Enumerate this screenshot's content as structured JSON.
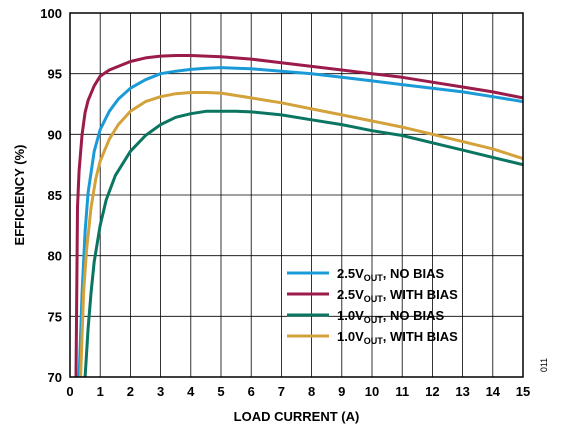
{
  "chart_data": {
    "type": "line",
    "title": "",
    "xlabel": "LOAD CURRENT (A)",
    "ylabel": "EFFICIENCY (%)",
    "xlim": [
      0,
      15
    ],
    "ylim": [
      70,
      100
    ],
    "x_ticks": [
      "0",
      "1",
      "2",
      "3",
      "4",
      "5",
      "6",
      "7",
      "8",
      "9",
      "10",
      "11",
      "12",
      "13",
      "14",
      "15"
    ],
    "y_ticks": [
      "70",
      "75",
      "80",
      "85",
      "90",
      "95",
      "100"
    ],
    "grid": true,
    "legend_position": "bottom-right",
    "figure_id": "011",
    "series": [
      {
        "name": "2.5V_OUT, NO BIAS",
        "legend_main": "2.5V",
        "legend_sub": "OUT",
        "legend_rest": ", NO BIAS",
        "color": "#1a9bd7",
        "x": [
          0.3,
          0.4,
          0.5,
          0.6,
          0.8,
          1.0,
          1.3,
          1.6,
          2.0,
          2.5,
          3.0,
          3.5,
          4.0,
          4.5,
          5.0,
          5.5,
          6.0,
          7.0,
          8.0,
          9.0,
          10.0,
          11.0,
          12.0,
          13.0,
          14.0,
          15.0
        ],
        "y": [
          70.0,
          77.0,
          82.0,
          85.2,
          88.6,
          90.4,
          91.9,
          92.9,
          93.8,
          94.5,
          95.0,
          95.2,
          95.35,
          95.45,
          95.5,
          95.45,
          95.4,
          95.2,
          95.0,
          94.7,
          94.4,
          94.1,
          93.8,
          93.5,
          93.1,
          92.7
        ]
      },
      {
        "name": "2.5V_OUT, WITH BIAS",
        "legend_main": "2.5V",
        "legend_sub": "OUT",
        "legend_rest": ", WITH BIAS",
        "color": "#9b1b4a",
        "x": [
          0.2,
          0.25,
          0.3,
          0.4,
          0.5,
          0.6,
          0.8,
          1.0,
          1.3,
          1.6,
          2.0,
          2.5,
          3.0,
          3.5,
          4.0,
          4.5,
          5.0,
          6.0,
          7.0,
          8.0,
          9.0,
          10.0,
          11.0,
          12.0,
          13.0,
          14.0,
          15.0
        ],
        "y": [
          70.0,
          84.0,
          87.0,
          90.0,
          91.8,
          92.8,
          94.0,
          94.8,
          95.3,
          95.6,
          96.0,
          96.3,
          96.45,
          96.5,
          96.5,
          96.45,
          96.4,
          96.2,
          95.9,
          95.6,
          95.3,
          95.0,
          94.7,
          94.3,
          93.9,
          93.5,
          93.0
        ]
      },
      {
        "name": "1.0V_OUT, NO BIAS",
        "legend_main": "1.0V",
        "legend_sub": "OUT",
        "legend_rest": ", NO BIAS",
        "color": "#0a7560",
        "x": [
          0.5,
          0.6,
          0.7,
          0.8,
          1.0,
          1.2,
          1.5,
          2.0,
          2.5,
          3.0,
          3.5,
          4.0,
          4.5,
          5.0,
          5.5,
          6.0,
          7.0,
          8.0,
          9.0,
          10.0,
          11.0,
          12.0,
          13.0,
          14.0,
          15.0
        ],
        "y": [
          70.0,
          74.0,
          77.0,
          79.5,
          82.5,
          84.6,
          86.6,
          88.6,
          89.9,
          90.8,
          91.4,
          91.7,
          91.9,
          91.9,
          91.9,
          91.85,
          91.6,
          91.2,
          90.8,
          90.3,
          89.9,
          89.3,
          88.7,
          88.1,
          87.5
        ]
      },
      {
        "name": "1.0V_OUT, WITH BIAS",
        "legend_main": "1.0V",
        "legend_sub": "OUT",
        "legend_rest": ", WITH BIAS",
        "color": "#d4a23a",
        "x": [
          0.35,
          0.45,
          0.55,
          0.7,
          0.85,
          1.0,
          1.3,
          1.6,
          2.0,
          2.5,
          3.0,
          3.5,
          4.0,
          4.5,
          5.0,
          6.0,
          7.0,
          8.0,
          9.0,
          10.0,
          11.0,
          12.0,
          13.0,
          14.0,
          15.0
        ],
        "y": [
          70.0,
          77.0,
          80.5,
          84.0,
          86.3,
          87.8,
          89.6,
          90.8,
          91.9,
          92.7,
          93.1,
          93.35,
          93.45,
          93.45,
          93.4,
          93.0,
          92.6,
          92.1,
          91.6,
          91.1,
          90.6,
          90.0,
          89.4,
          88.8,
          88.0
        ]
      }
    ]
  }
}
